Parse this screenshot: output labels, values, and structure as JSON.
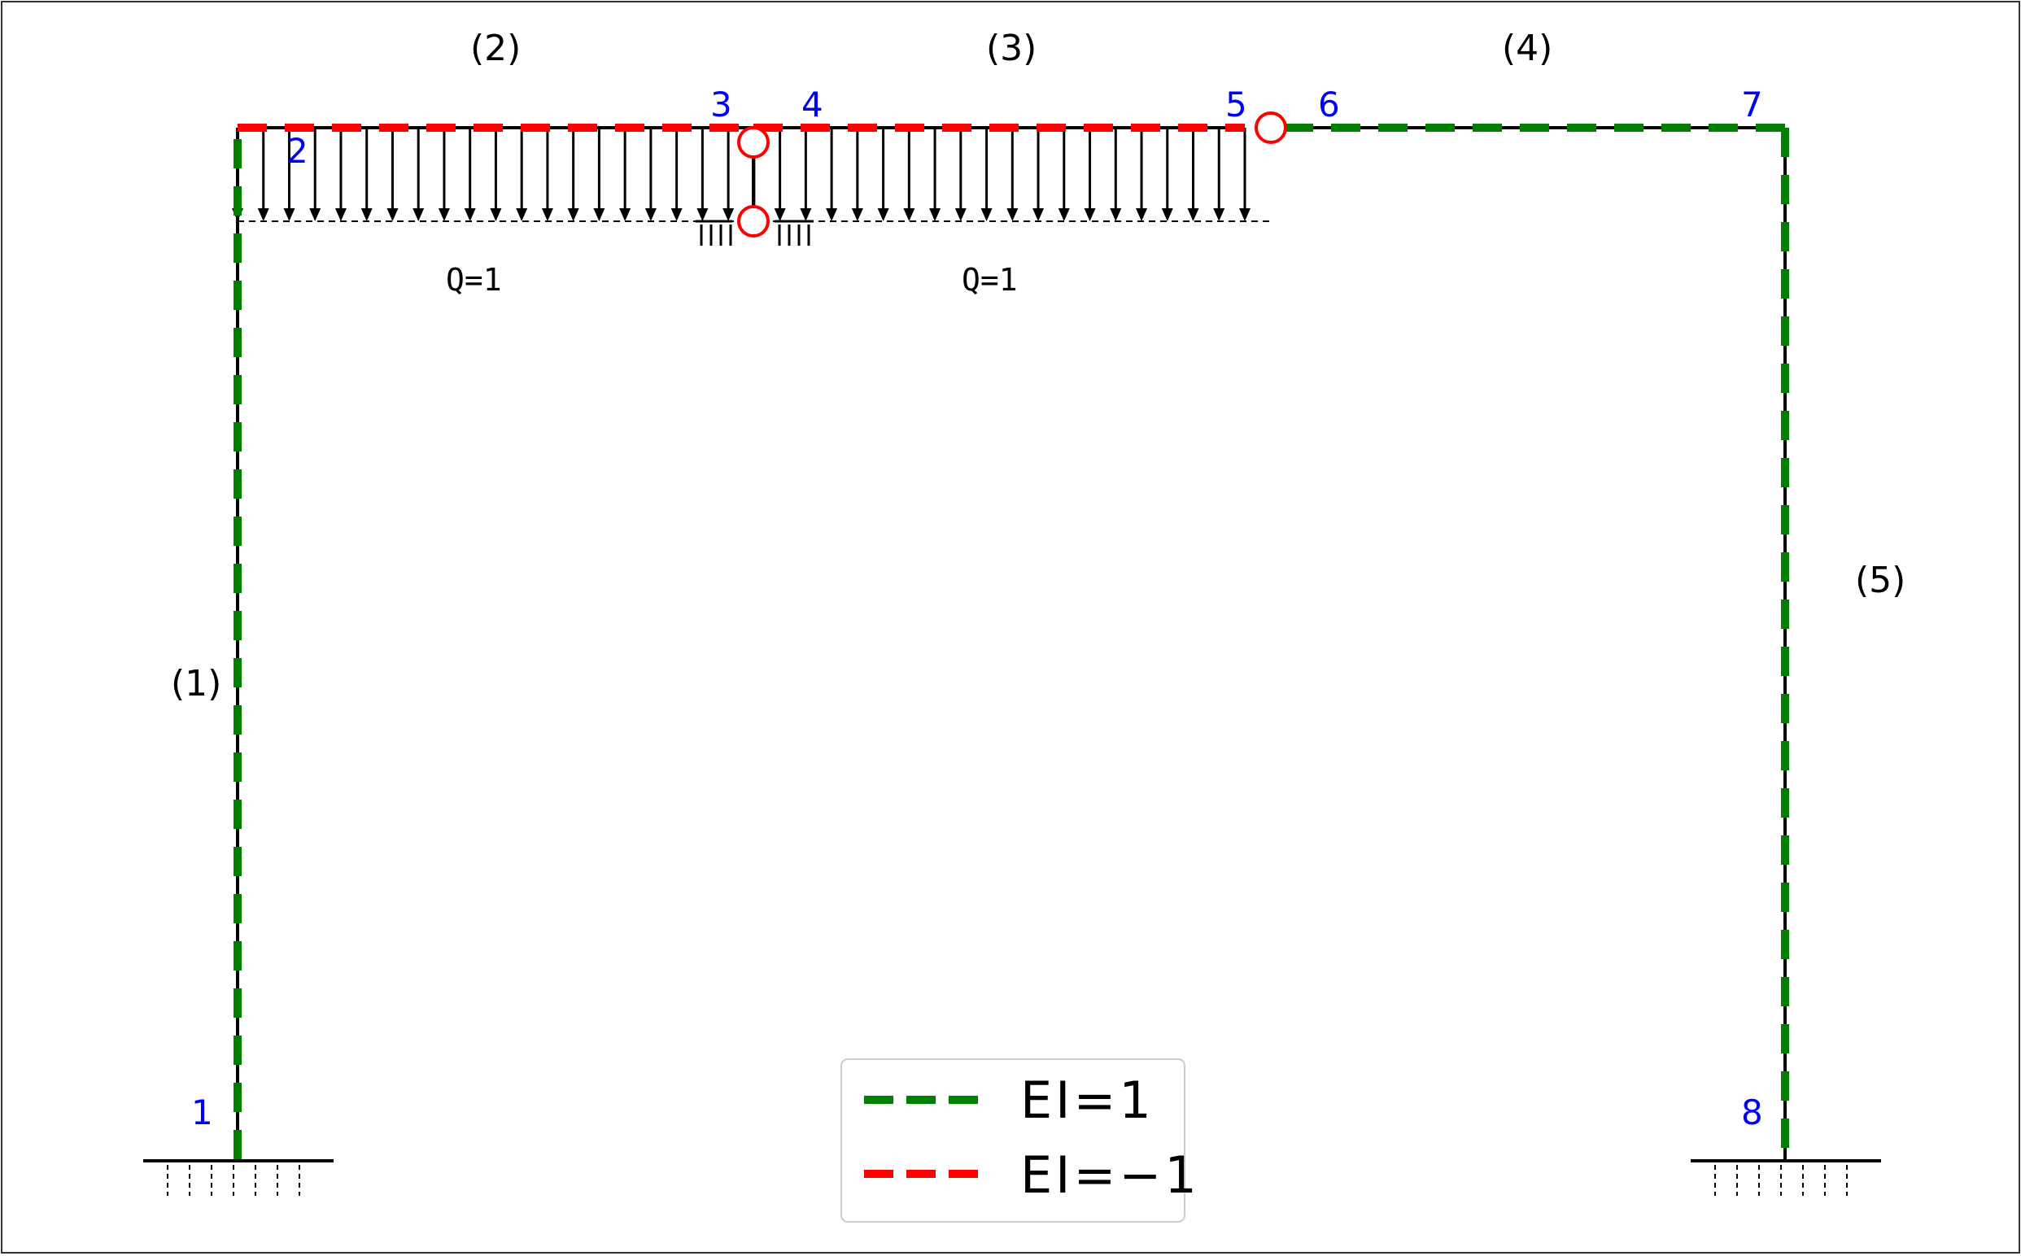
{
  "colors": {
    "positive_EI": "#007f00",
    "negative_EI": "#ff0000",
    "node_label": "#0000ff",
    "hinge": "#ff0000",
    "frame": "#000000"
  },
  "members": [
    {
      "id": "1",
      "label": "(1)",
      "EI": 1
    },
    {
      "id": "2",
      "label": "(2)",
      "EI": -1
    },
    {
      "id": "3",
      "label": "(3)",
      "EI": -1
    },
    {
      "id": "4",
      "label": "(4)",
      "EI": 1
    },
    {
      "id": "5",
      "label": "(5)",
      "EI": 1
    }
  ],
  "nodes": [
    "1",
    "2",
    "3",
    "4",
    "5",
    "6",
    "7",
    "8"
  ],
  "loads": [
    {
      "member": "2",
      "label": "Q=1"
    },
    {
      "member": "3",
      "label": "Q=1"
    }
  ],
  "legend": [
    {
      "label": "EI=1",
      "color": "#007f00"
    },
    {
      "label": "EI=−1",
      "color": "#ff0000"
    }
  ]
}
